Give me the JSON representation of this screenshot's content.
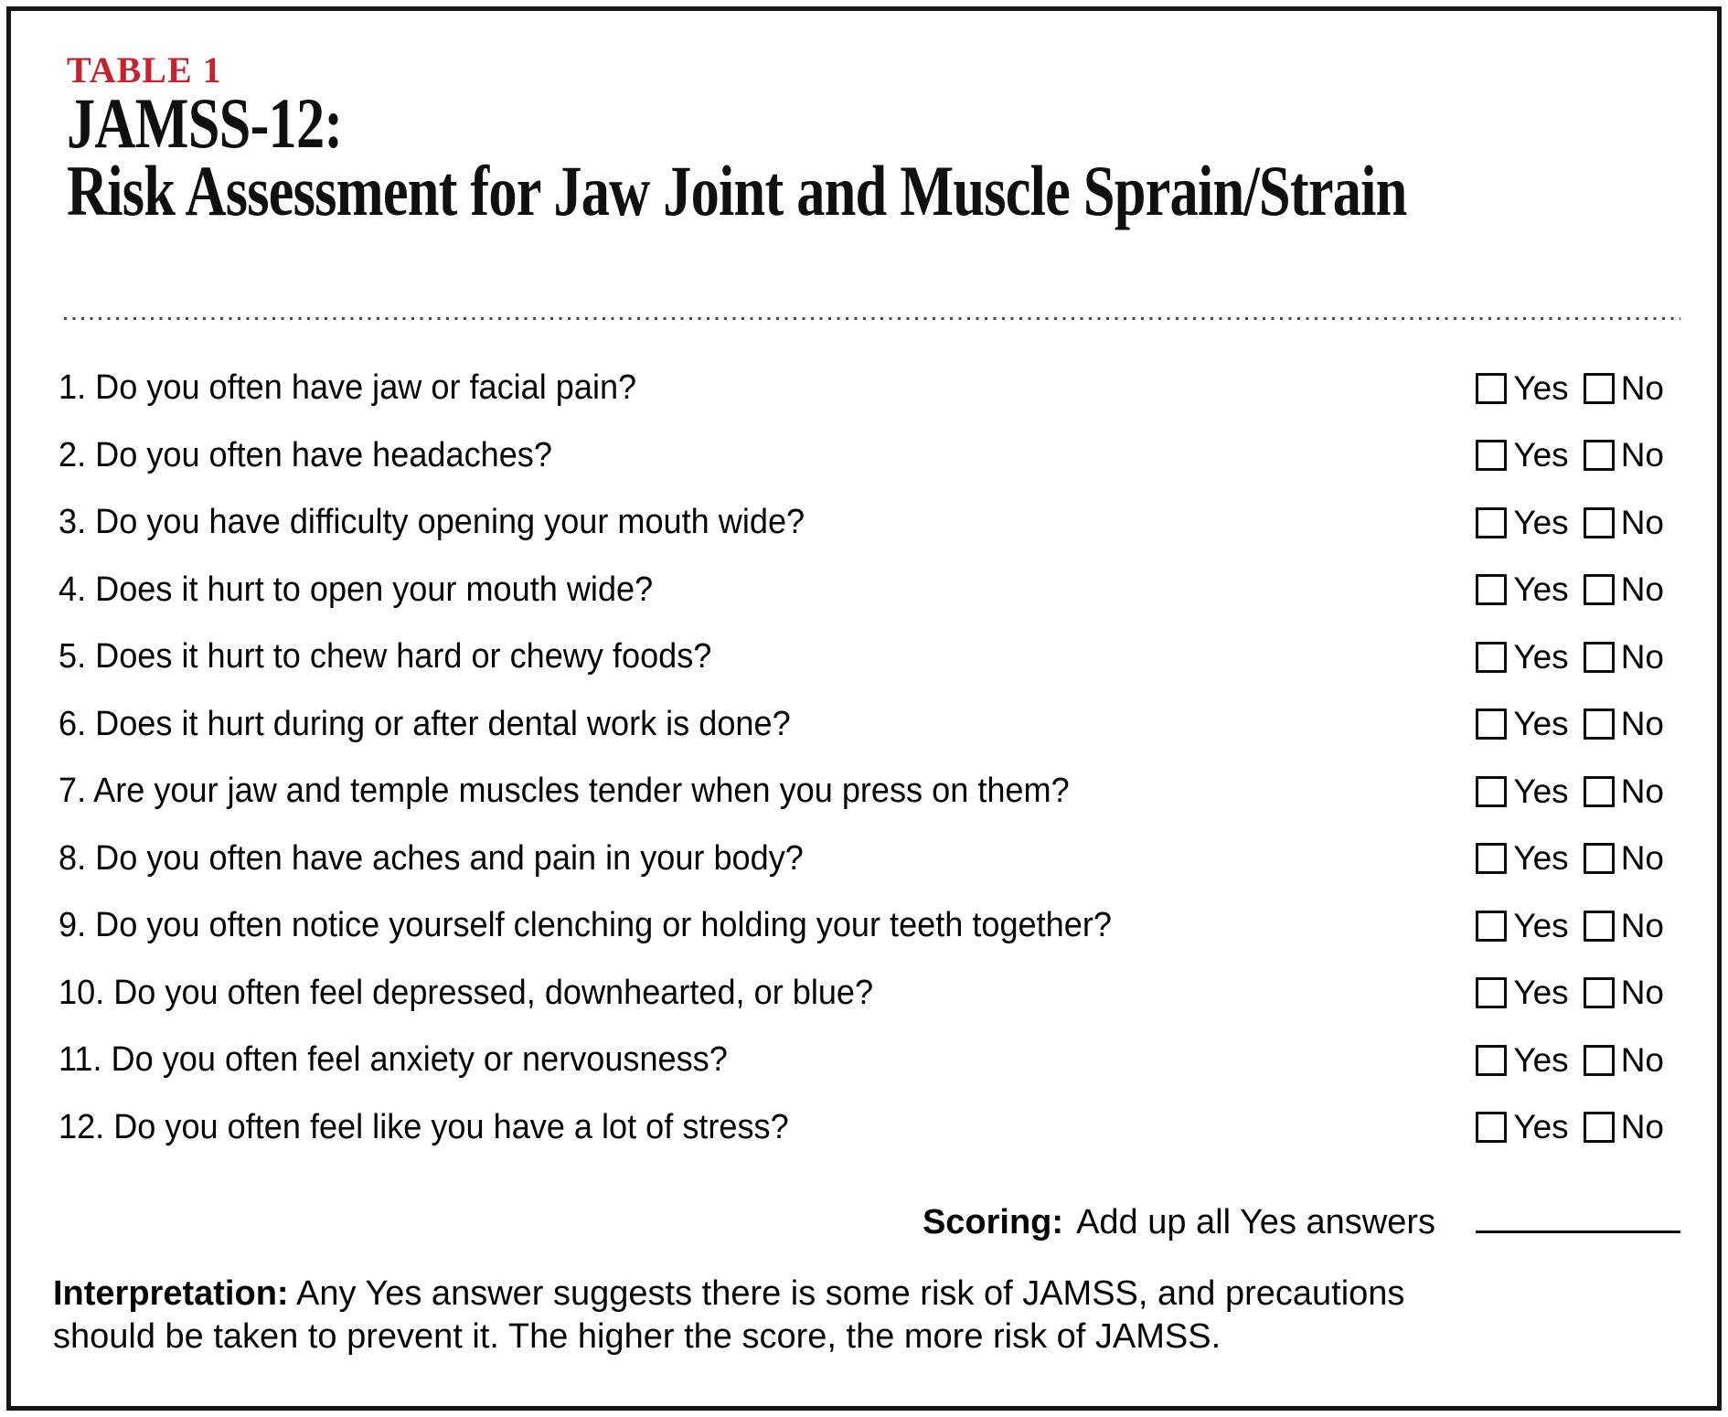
{
  "header": {
    "table_label": "TABLE 1",
    "title_line1": "JAMSS-12:",
    "title_line2": "Risk Assessment for Jaw Joint and Muscle Sprain/Strain"
  },
  "questions": [
    "1. Do you often have jaw or facial pain?",
    "2. Do you often have headaches?",
    "3. Do you have difficulty opening your mouth wide?",
    "4. Does it hurt to open your mouth wide?",
    "5. Does it hurt to chew hard or chewy foods?",
    "6. Does it hurt during or after dental work is done?",
    "7. Are your jaw and temple muscles tender when you press on them?",
    "8. Do you often have aches and pain in your body?",
    "9. Do you often notice yourself clenching or holding your teeth together?",
    "10. Do you often feel depressed, downhearted, or blue?",
    "11. Do you often feel anxiety or nervousness?",
    "12. Do you often feel like you have a lot of stress?"
  ],
  "answer_options": {
    "yes_label": "Yes",
    "no_label": "No",
    "all_unchecked": true
  },
  "scoring": {
    "label": "Scoring:",
    "text": "Add up all Yes answers",
    "blank_value": ""
  },
  "interpretation": {
    "label": "Interpretation:",
    "line1": "Any Yes answer suggests there is some risk of JAMSS, and precautions",
    "line2": "should be taken to prevent it. The higher the score, the more risk of JAMSS."
  },
  "colors": {
    "accent_red": "#C8232C",
    "text": "#050505",
    "border": "#161616"
  }
}
